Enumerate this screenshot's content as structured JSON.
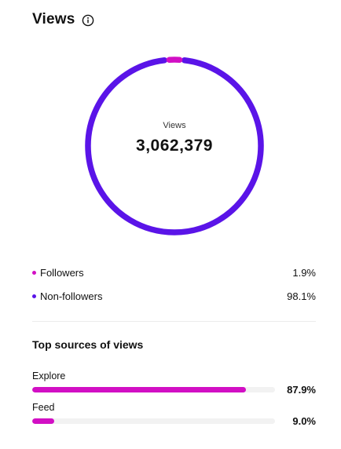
{
  "header": {
    "title": "Views",
    "info_icon": "info-icon"
  },
  "colors": {
    "followers": "#d20fc4",
    "non_followers": "#5a14e8",
    "track": "#f2f2f2"
  },
  "donut": {
    "caption": "Views",
    "total": "3,062,379",
    "segments": [
      {
        "name": "Followers",
        "percent": 1.9
      },
      {
        "name": "Non-followers",
        "percent": 98.1
      }
    ]
  },
  "legend": [
    {
      "label": "Followers",
      "value": "1.9%"
    },
    {
      "label": "Non-followers",
      "value": "98.1%"
    }
  ],
  "top_sources": {
    "title": "Top sources of views",
    "items": [
      {
        "label": "Explore",
        "value": "87.9%",
        "fraction": 0.879
      },
      {
        "label": "Feed",
        "value": "9.0%",
        "fraction": 0.09
      }
    ]
  }
}
